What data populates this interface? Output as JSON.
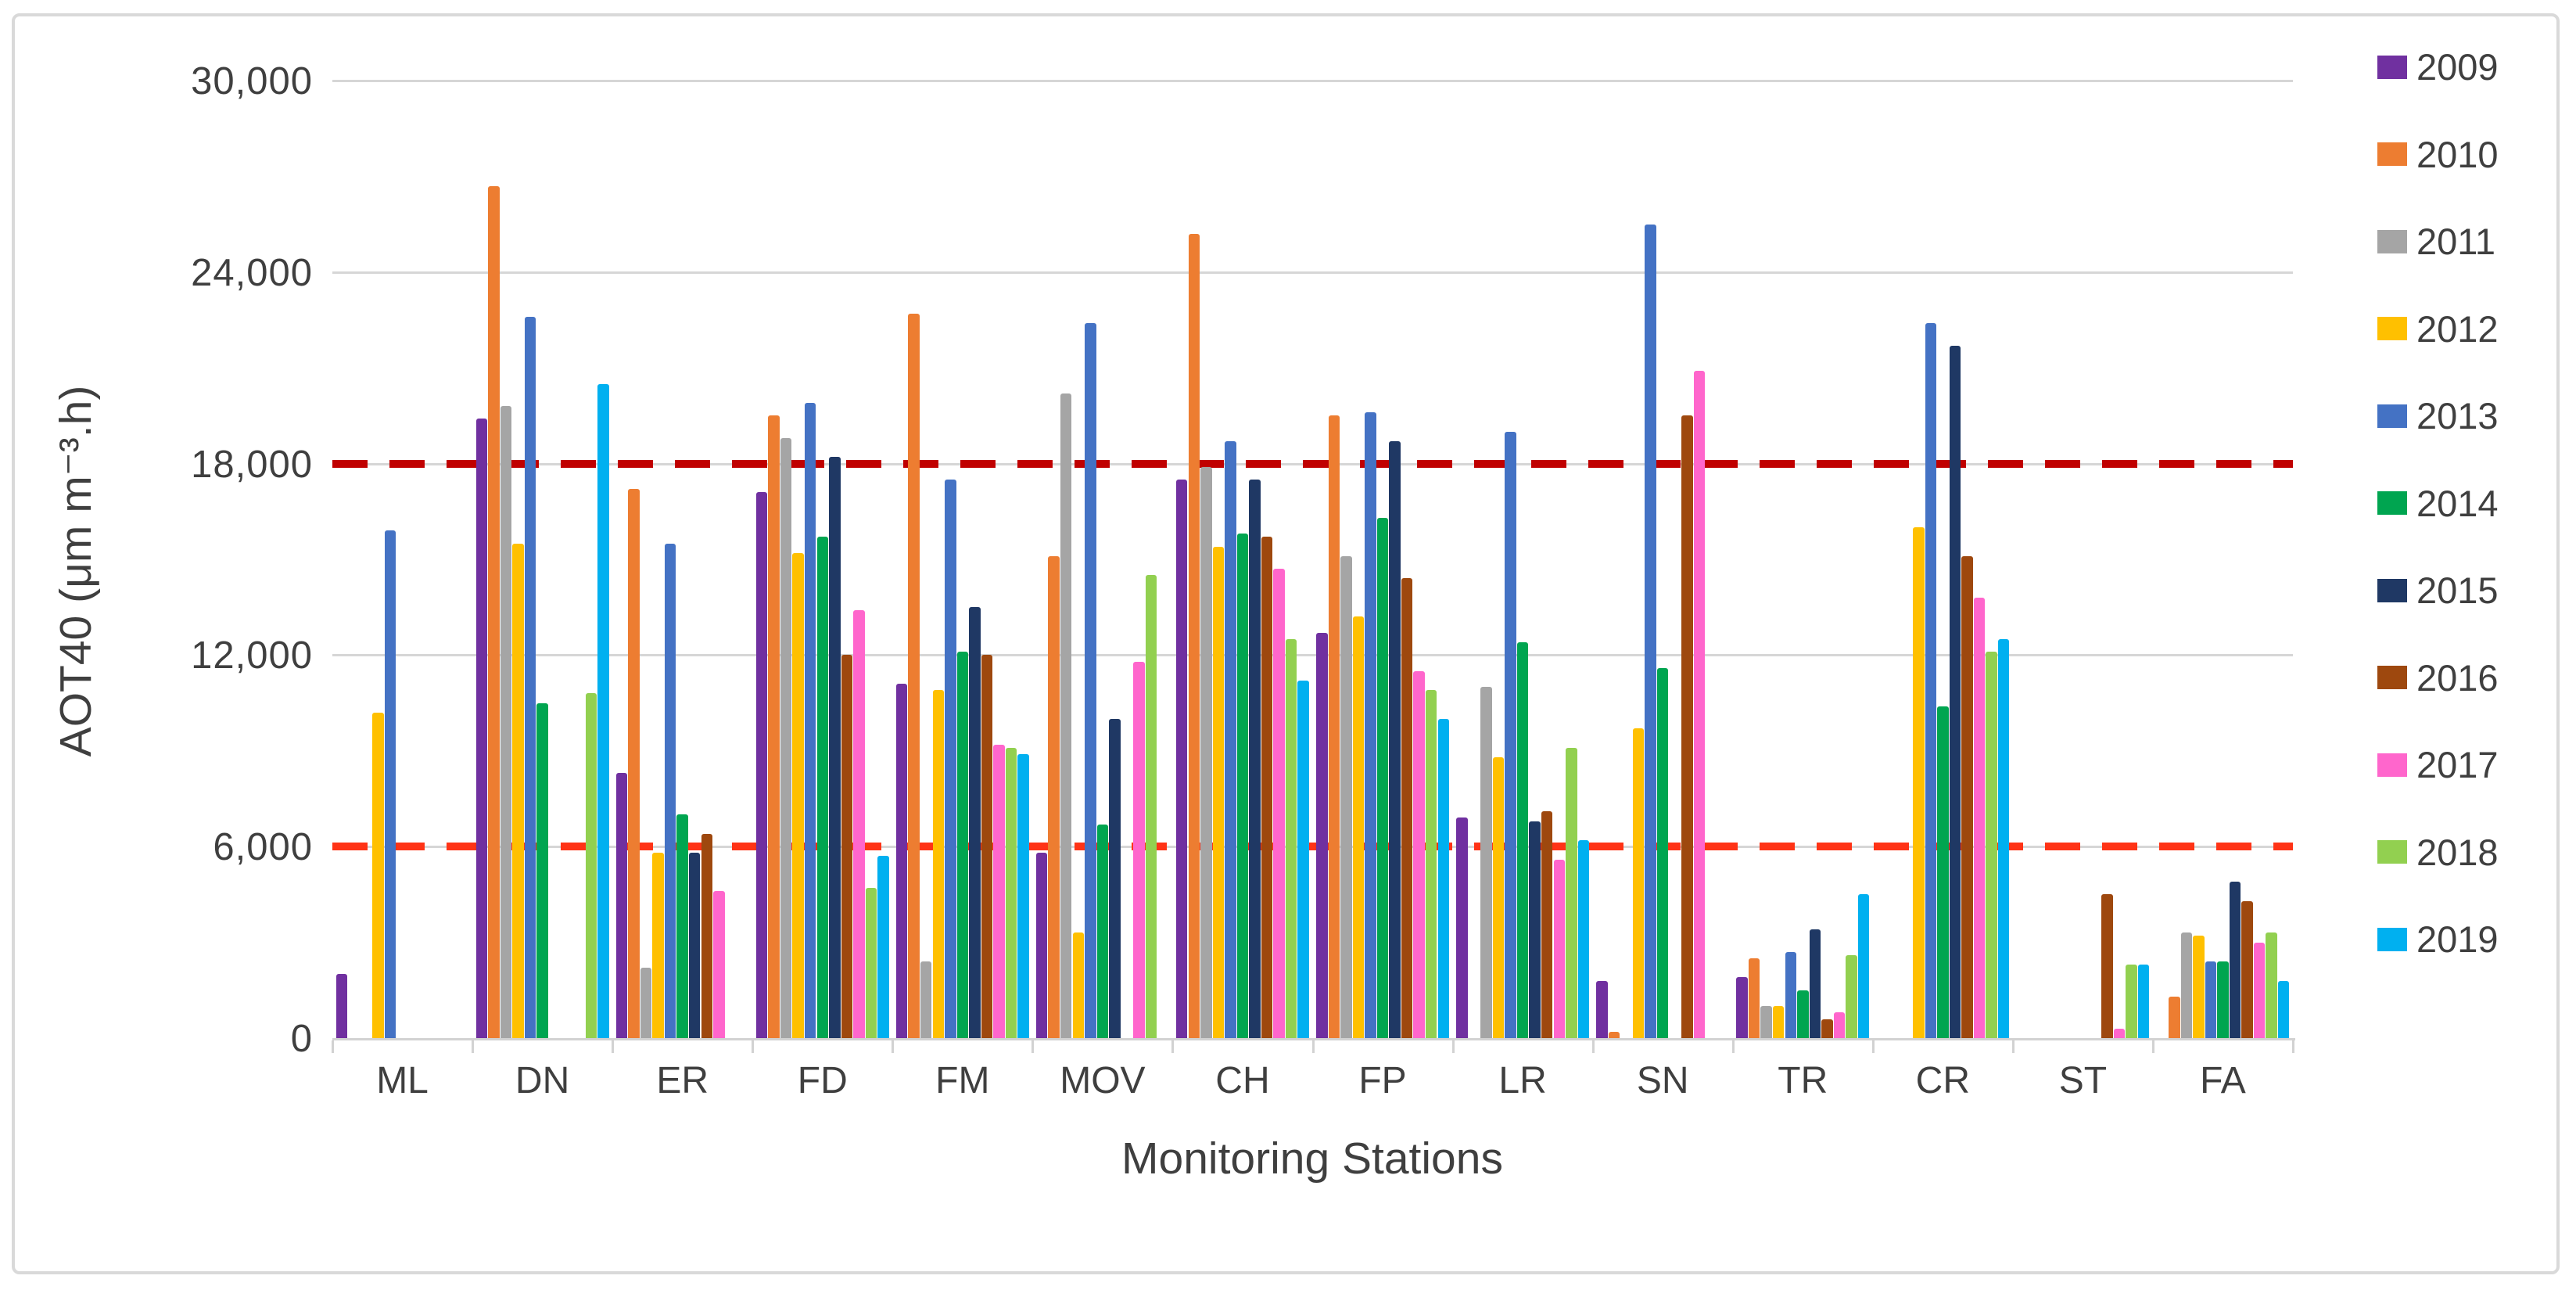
{
  "figure": {
    "border_color": "#D9D9D9",
    "background": "#ffffff",
    "text_color": "#3F3F3F",
    "gridline_color": "#D6D6D6"
  },
  "chart_data": {
    "type": "bar",
    "title": "",
    "xlabel": "Monitoring Stations",
    "ylabel": "AOT40 (μm m⁻³.h)",
    "ylim": [
      0,
      30000
    ],
    "ytick_interval": 6000,
    "yticks": [
      {
        "value": 0,
        "label": "0"
      },
      {
        "value": 6000,
        "label": "6,000"
      },
      {
        "value": 12000,
        "label": "12,000"
      },
      {
        "value": 18000,
        "label": "18,000"
      },
      {
        "value": 24000,
        "label": "24,000"
      },
      {
        "value": 30000,
        "label": "30,000"
      }
    ],
    "grid": "horizontal",
    "legend_position": "right",
    "categories": [
      "ML",
      "DN",
      "ER",
      "FD",
      "FM",
      "MOV",
      "CH",
      "FP",
      "LR",
      "SN",
      "TR",
      "CR",
      "ST",
      "FA"
    ],
    "series": [
      {
        "name": "2009",
        "color": "#7030A0",
        "values": [
          2000,
          19400,
          8300,
          17100,
          11100,
          5800,
          17500,
          12700,
          6900,
          1800,
          1900,
          0,
          0,
          0
        ]
      },
      {
        "name": "2010",
        "color": "#ED7D31",
        "values": [
          0,
          26700,
          17200,
          19500,
          22700,
          15100,
          25200,
          19500,
          0,
          200,
          2500,
          0,
          0,
          1300
        ]
      },
      {
        "name": "2011",
        "color": "#A5A5A5",
        "values": [
          0,
          19800,
          2200,
          18800,
          2400,
          20200,
          17900,
          15100,
          11000,
          0,
          1000,
          0,
          0,
          3300
        ]
      },
      {
        "name": "2012",
        "color": "#FFC000",
        "values": [
          10200,
          15500,
          5800,
          15200,
          10900,
          3300,
          15400,
          13200,
          8800,
          9700,
          1000,
          16000,
          0,
          3200
        ]
      },
      {
        "name": "2013",
        "color": "#4472C4",
        "values": [
          15900,
          22600,
          15500,
          19900,
          17500,
          22400,
          18700,
          19600,
          19000,
          25500,
          2700,
          22400,
          0,
          2400
        ]
      },
      {
        "name": "2014",
        "color": "#00A550",
        "values": [
          0,
          10500,
          7000,
          15700,
          12100,
          6700,
          15800,
          16300,
          12400,
          11600,
          1500,
          10400,
          0,
          2400
        ]
      },
      {
        "name": "2015",
        "color": "#1F3864",
        "values": [
          0,
          0,
          5800,
          18200,
          13500,
          10000,
          17500,
          18700,
          6800,
          0,
          3400,
          21700,
          0,
          4900
        ]
      },
      {
        "name": "2016",
        "color": "#9E480E",
        "values": [
          0,
          0,
          6400,
          12000,
          12000,
          0,
          15700,
          14400,
          7100,
          19500,
          600,
          15100,
          4500,
          4300
        ]
      },
      {
        "name": "2017",
        "color": "#FF66CC",
        "values": [
          0,
          0,
          4600,
          13400,
          9200,
          11800,
          14700,
          11500,
          5600,
          20900,
          800,
          13800,
          300,
          3000
        ]
      },
      {
        "name": "2018",
        "color": "#92D050",
        "values": [
          0,
          10800,
          0,
          4700,
          9100,
          14500,
          12500,
          10900,
          9100,
          0,
          2600,
          12100,
          2300,
          3300
        ]
      },
      {
        "name": "2019",
        "color": "#00B0F0",
        "values": [
          0,
          20500,
          0,
          5700,
          8900,
          0,
          11200,
          10000,
          6200,
          0,
          4500,
          12500,
          2300,
          1800
        ]
      }
    ],
    "reference_lines": [
      {
        "value": 18000,
        "color": "#C00000",
        "style": "dashed"
      },
      {
        "value": 6000,
        "color": "#FF3316",
        "style": "dashed"
      }
    ]
  }
}
